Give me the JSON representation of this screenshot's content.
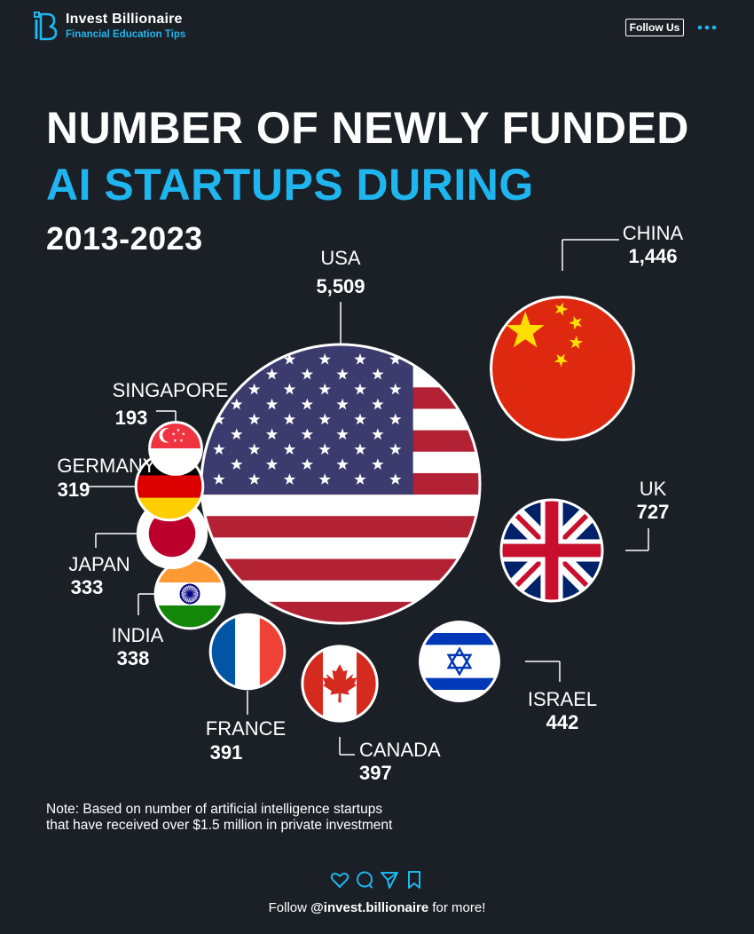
{
  "brand": {
    "name": "Invest Billionaire",
    "tagline": "Financial Education Tips",
    "follow_label": "Follow Us",
    "more_icon": "more-dots-icon"
  },
  "title": {
    "line1": "NUMBER OF NEWLY FUNDED",
    "line2": "AI STARTUPS DURING",
    "line3": "2013-2023"
  },
  "colors": {
    "background": "#1b1f26",
    "accent": "#1fb6f0",
    "text": "#ffffff"
  },
  "chart_data": {
    "type": "bubble",
    "title": "NUMBER OF NEWLY FUNDED AI STARTUPS DURING 2013-2023",
    "series": [
      {
        "name": "USA",
        "value": 5509,
        "label": "5,509",
        "flag": "usa-flag-icon"
      },
      {
        "name": "CHINA",
        "value": 1446,
        "label": "1,446",
        "flag": "china-flag-icon"
      },
      {
        "name": "UK",
        "value": 727,
        "label": "727",
        "flag": "uk-flag-icon"
      },
      {
        "name": "ISRAEL",
        "value": 442,
        "label": "442",
        "flag": "israel-flag-icon"
      },
      {
        "name": "CANADA",
        "value": 397,
        "label": "397",
        "flag": "canada-flag-icon"
      },
      {
        "name": "FRANCE",
        "value": 391,
        "label": "391",
        "flag": "france-flag-icon"
      },
      {
        "name": "INDIA",
        "value": 338,
        "label": "338",
        "flag": "india-flag-icon"
      },
      {
        "name": "JAPAN",
        "value": 333,
        "label": "333",
        "flag": "japan-flag-icon"
      },
      {
        "name": "GERMANY",
        "value": 319,
        "label": "319",
        "flag": "germany-flag-icon"
      },
      {
        "name": "SINGAPORE",
        "value": 193,
        "label": "193",
        "flag": "singapore-flag-icon"
      }
    ]
  },
  "note": {
    "line1": "Note: Based on number of artificial intelligence startups",
    "line2": "that have received over $1.5 million in private investment"
  },
  "footer": {
    "prefix": "Follow",
    "handle": "@invest.billionaire",
    "suffix": "for more!",
    "icons": [
      "heart-icon",
      "comment-icon",
      "share-icon",
      "bookmark-icon"
    ]
  }
}
